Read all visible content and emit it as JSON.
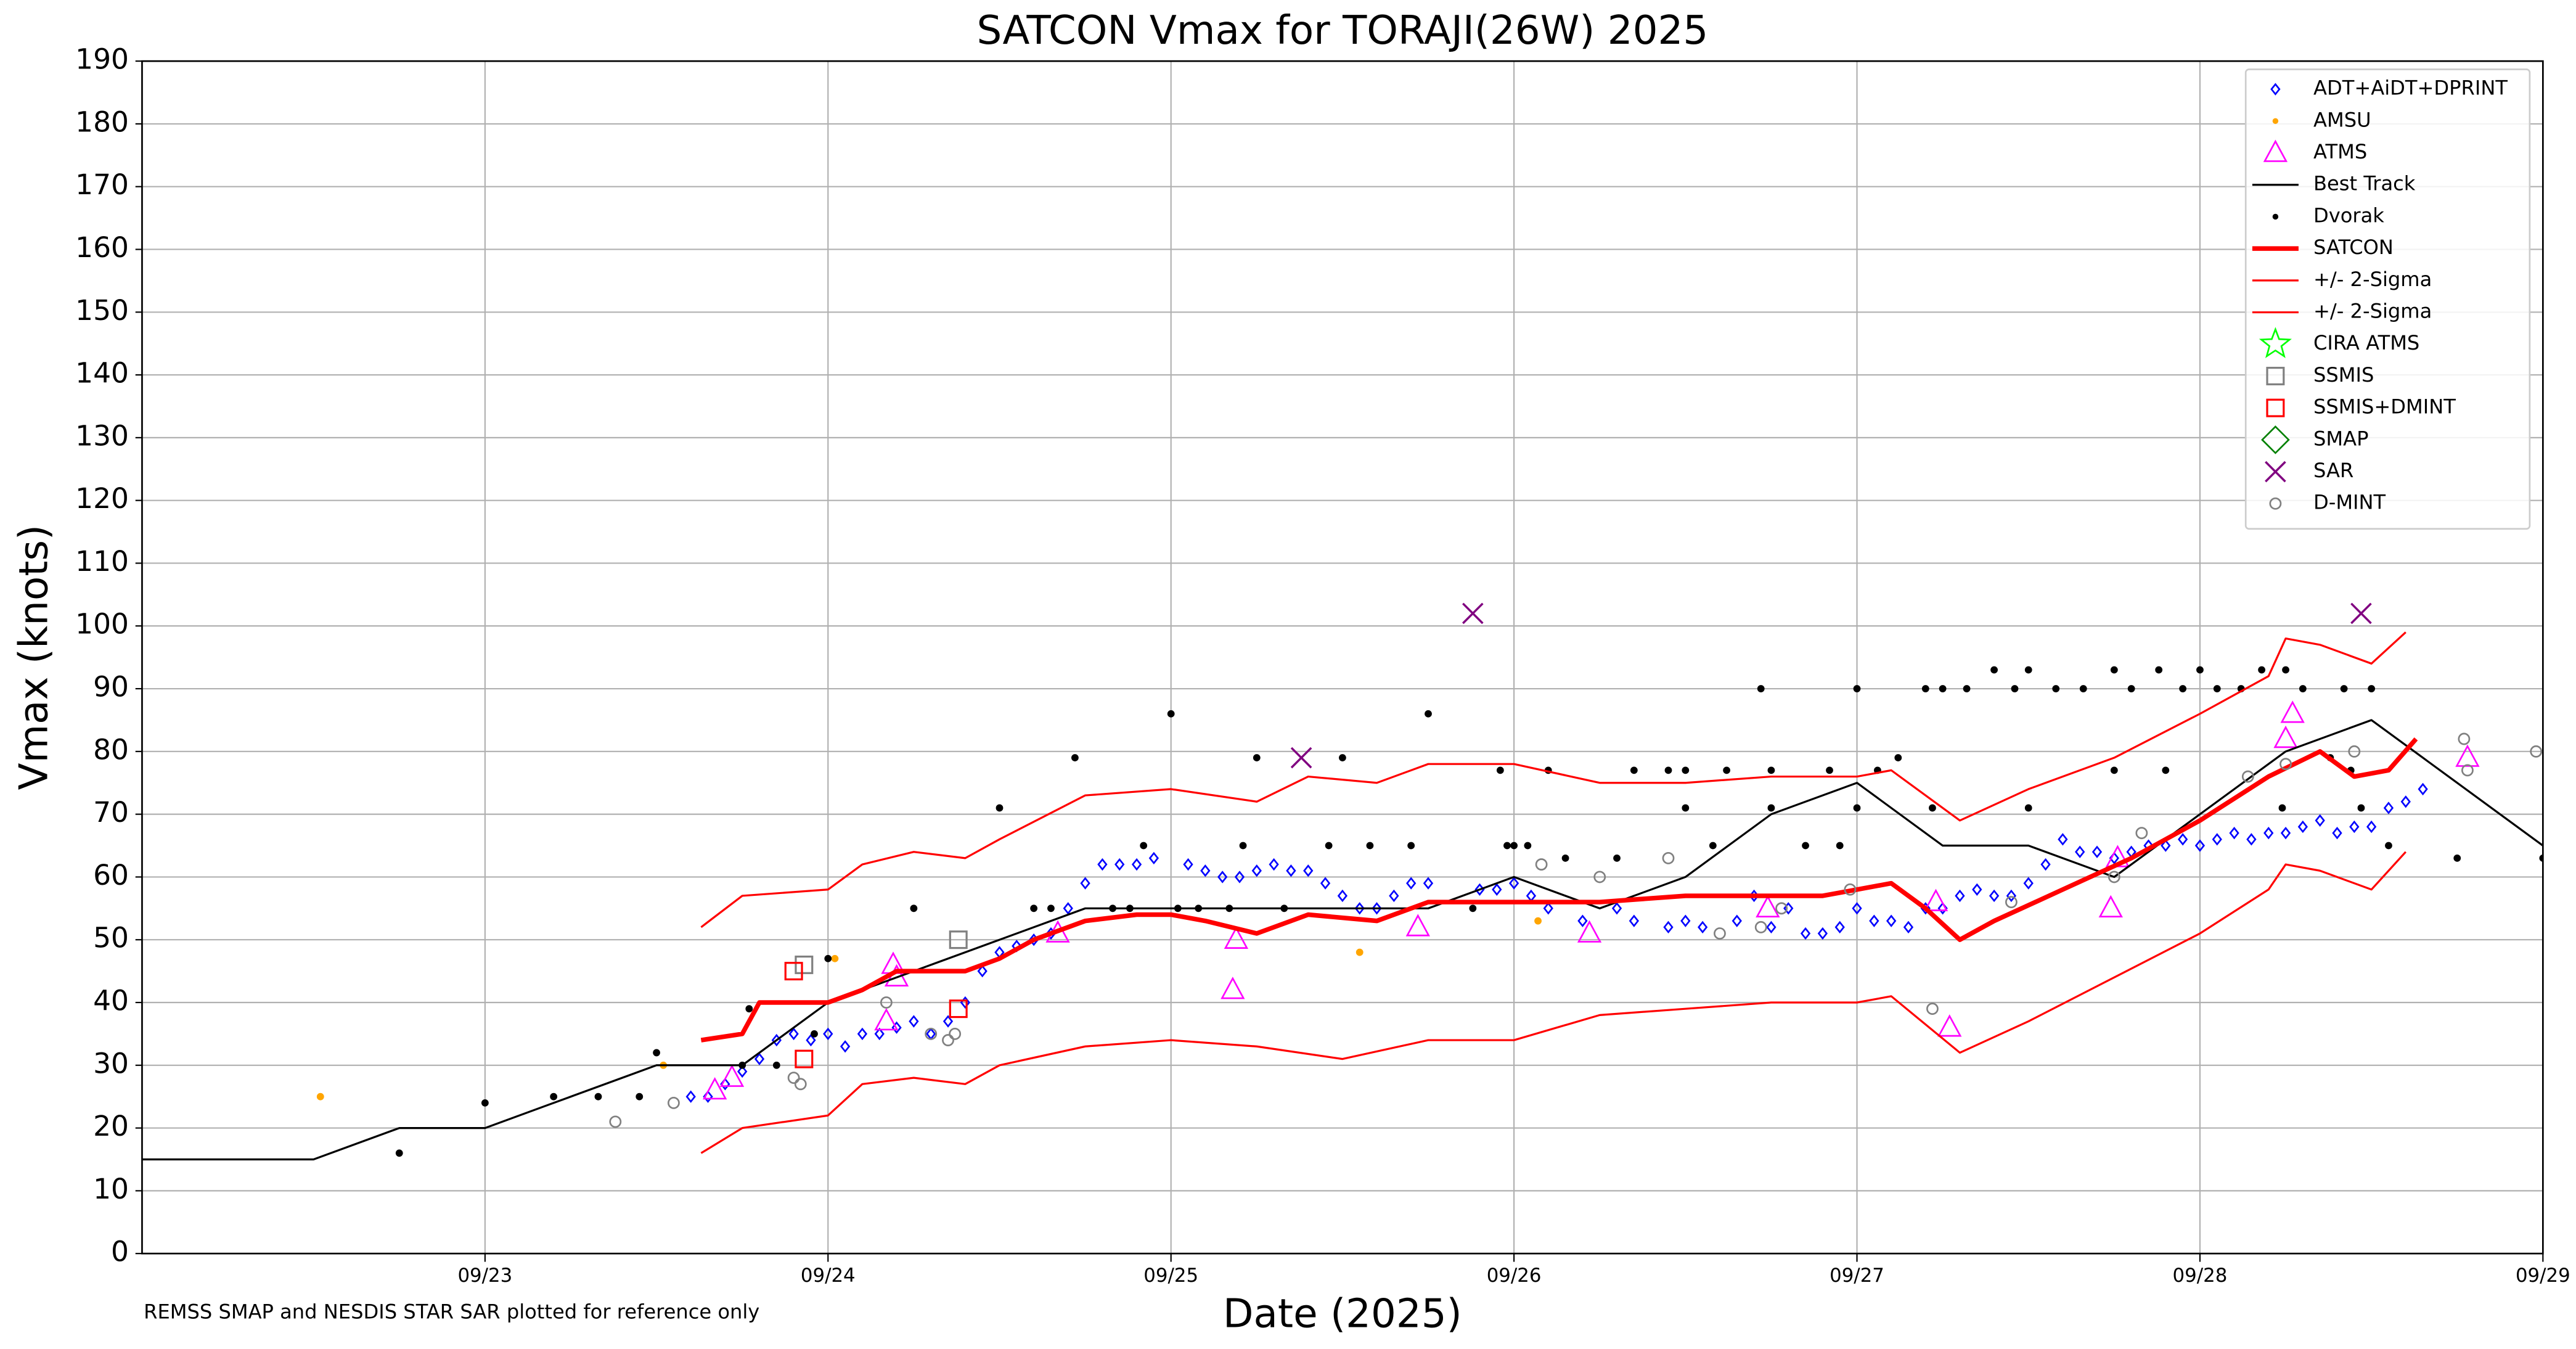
{
  "chart_data": {
    "type": "scatter",
    "title": "SATCON Vmax for TORAJI(26W) 2025",
    "x_label": "Date (2025)",
    "y_label": "Vmax (knots)",
    "note": "REMSS SMAP and NESDIS STAR SAR plotted for reference only",
    "xlim": [
      22,
      29
    ],
    "ylim": [
      0,
      190
    ],
    "xticks": [
      {
        "value": 23,
        "label": "09/23"
      },
      {
        "value": 24,
        "label": "09/24"
      },
      {
        "value": 25,
        "label": "09/25"
      },
      {
        "value": 26,
        "label": "09/26"
      },
      {
        "value": 27,
        "label": "09/27"
      },
      {
        "value": 28,
        "label": "09/28"
      },
      {
        "value": 29,
        "label": "09/29"
      }
    ],
    "yticks": [
      0,
      10,
      20,
      30,
      40,
      50,
      60,
      70,
      80,
      90,
      100,
      110,
      120,
      130,
      140,
      150,
      160,
      170,
      180,
      190
    ],
    "grid": true,
    "legend": "upper right",
    "series": [
      {
        "name": "ADT+AiDT+DPRINT",
        "color": "#0000ff",
        "marker": "diamond",
        "x": [
          23.6,
          23.65,
          23.7,
          23.75,
          23.8,
          23.85,
          23.9,
          23.95,
          24.0,
          24.05,
          24.1,
          24.15,
          24.2,
          24.25,
          24.3,
          24.35,
          24.4,
          24.45,
          24.5,
          24.55,
          24.6,
          24.65,
          24.7,
          24.75,
          24.8,
          24.85,
          24.9,
          24.95,
          25.05,
          25.1,
          25.15,
          25.2,
          25.25,
          25.3,
          25.35,
          25.4,
          25.45,
          25.5,
          25.55,
          25.6,
          25.65,
          25.7,
          25.75,
          25.9,
          25.95,
          26.0,
          26.05,
          26.1,
          26.2,
          26.3,
          26.35,
          26.45,
          26.5,
          26.55,
          26.65,
          26.7,
          26.75,
          26.8,
          26.85,
          26.9,
          26.95,
          27.0,
          27.05,
          27.1,
          27.15,
          27.2,
          27.25,
          27.3,
          27.35,
          27.4,
          27.45,
          27.5,
          27.55,
          27.6,
          27.65,
          27.7,
          27.75,
          27.8,
          27.85,
          27.9,
          27.95,
          28.0,
          28.05,
          28.1,
          28.15,
          28.2,
          28.25,
          28.3,
          28.35,
          28.4,
          28.45,
          28.5,
          28.55,
          28.6,
          28.65
        ],
        "values": [
          25,
          25,
          27,
          29,
          31,
          34,
          35,
          34,
          35,
          33,
          35,
          35,
          36,
          37,
          35,
          37,
          40,
          45,
          48,
          49,
          50,
          51,
          55,
          59,
          62,
          62,
          62,
          63,
          62,
          61,
          60,
          60,
          61,
          62,
          61,
          61,
          59,
          57,
          55,
          55,
          57,
          59,
          59,
          58,
          58,
          59,
          57,
          55,
          53,
          55,
          53,
          52,
          53,
          52,
          53,
          57,
          52,
          55,
          51,
          51,
          52,
          55,
          53,
          53,
          52,
          55,
          55,
          57,
          58,
          57,
          57,
          59,
          62,
          66,
          64,
          64,
          63,
          64,
          65,
          65,
          66,
          65,
          66,
          67,
          66,
          67,
          67,
          68,
          69,
          67,
          68,
          68,
          71,
          72,
          74
        ]
      },
      {
        "name": "AMSU",
        "color": "#ffa500",
        "marker": "dot",
        "x": [
          22.52,
          23.52,
          24.02,
          25.55,
          26.07
        ],
        "values": [
          25,
          30,
          47,
          48,
          53
        ]
      },
      {
        "name": "ATMS",
        "color": "#ff00ff",
        "marker": "triangle",
        "x": [
          23.67,
          23.72,
          24.17,
          24.19,
          24.2,
          24.67,
          25.18,
          25.19,
          25.72,
          26.22,
          26.74,
          27.23,
          27.27,
          27.74,
          27.76,
          28.25,
          28.27,
          28.78
        ],
        "values": [
          26,
          28,
          37,
          46,
          44,
          51,
          42,
          50,
          52,
          51,
          55,
          56,
          36,
          55,
          63,
          82,
          86,
          79
        ]
      },
      {
        "name": "Best Track",
        "color": "#000000",
        "marker": "line",
        "line_width": 1.2,
        "x": [
          22.0,
          22.25,
          22.5,
          22.75,
          23.0,
          23.25,
          23.5,
          23.75,
          24.0,
          24.25,
          24.5,
          24.75,
          25.0,
          25.25,
          25.5,
          25.75,
          26.0,
          26.25,
          26.5,
          26.75,
          27.0,
          27.25,
          27.5,
          27.75,
          28.0,
          28.25,
          28.5,
          28.75,
          29.0
        ],
        "values": [
          15,
          15,
          15,
          20,
          20,
          25,
          30,
          30,
          40,
          45,
          50,
          55,
          55,
          55,
          55,
          55,
          60,
          55,
          60,
          70,
          75,
          65,
          65,
          60,
          70,
          80,
          85,
          75,
          65
        ]
      },
      {
        "name": "Dvorak",
        "color": "#000000",
        "marker": "dot",
        "x": [
          22.75,
          23.0,
          23.2,
          23.33,
          23.45,
          23.5,
          23.75,
          23.77,
          23.85,
          23.96,
          24.0,
          24.25,
          24.5,
          24.6,
          24.65,
          24.72,
          24.83,
          24.88,
          24.92,
          25.0,
          25.02,
          25.08,
          25.17,
          25.21,
          25.25,
          25.33,
          25.46,
          25.5,
          25.58,
          25.7,
          25.75,
          25.88,
          25.96,
          25.98,
          26.0,
          26.04,
          26.1,
          26.15,
          26.3,
          26.35,
          26.45,
          26.5,
          26.58,
          26.62,
          26.72,
          26.75,
          26.85,
          26.92,
          26.95,
          27.0,
          27.06,
          27.12,
          27.2,
          27.25,
          27.32,
          27.4,
          27.46,
          27.5,
          27.58,
          27.66,
          27.75,
          27.8,
          27.88,
          27.95,
          28.0,
          28.05,
          28.12,
          28.18,
          28.25,
          28.3,
          28.38,
          28.42,
          28.5,
          28.55,
          28.75,
          29.0,
          28.24,
          27.75,
          27.9,
          28.47,
          28.44,
          27.22,
          27.5,
          26.5,
          26.75,
          27.0
        ],
        "values": [
          16,
          24,
          25,
          25,
          25,
          32,
          30,
          39,
          30,
          35,
          47,
          55,
          71,
          55,
          55,
          79,
          55,
          55,
          65,
          86,
          55,
          55,
          55,
          65,
          79,
          55,
          65,
          79,
          65,
          65,
          86,
          55,
          77,
          65,
          65,
          65,
          77,
          63,
          63,
          77,
          77,
          77,
          65,
          77,
          90,
          77,
          65,
          77,
          65,
          90,
          77,
          79,
          90,
          90,
          90,
          93,
          90,
          93,
          90,
          90,
          93,
          90,
          93,
          90,
          93,
          90,
          90,
          93,
          93,
          90,
          79,
          90,
          90,
          65,
          63,
          63,
          71,
          77,
          77,
          71,
          77,
          71,
          71,
          71,
          71,
          71
        ]
      },
      {
        "name": "SATCON",
        "color": "#ff0000",
        "marker": "line",
        "line_width": 2.8,
        "x": [
          23.63,
          23.75,
          23.8,
          24.0,
          24.1,
          24.2,
          24.3,
          24.4,
          24.5,
          24.6,
          24.75,
          24.9,
          25.0,
          25.1,
          25.25,
          25.4,
          25.6,
          25.75,
          26.0,
          26.25,
          26.5,
          26.75,
          26.9,
          27.0,
          27.1,
          27.2,
          27.3,
          27.4,
          27.6,
          27.8,
          28.0,
          28.2,
          28.35,
          28.45,
          28.55,
          28.63
        ],
        "values": [
          34,
          35,
          40,
          40,
          42,
          45,
          45,
          45,
          47,
          50,
          53,
          54,
          54,
          53,
          51,
          54,
          53,
          56,
          56,
          56,
          57,
          57,
          57,
          58,
          59,
          55,
          50,
          53,
          58,
          63,
          69,
          76,
          80,
          76,
          77,
          82
        ]
      },
      {
        "name": "+/- 2-Sigma",
        "color": "#ff0000",
        "marker": "line",
        "line_width": 1.2,
        "x": [
          23.63,
          23.75,
          24.0,
          24.1,
          24.25,
          24.4,
          24.5,
          24.75,
          25.0,
          25.25,
          25.4,
          25.6,
          25.75,
          26.0,
          26.25,
          26.5,
          26.75,
          27.0,
          27.1,
          27.3,
          27.5,
          27.75,
          28.0,
          28.2,
          28.25,
          28.35,
          28.5,
          28.6
        ],
        "values": [
          52,
          57,
          58,
          62,
          64,
          63,
          66,
          73,
          74,
          72,
          76,
          75,
          78,
          78,
          75,
          75,
          76,
          76,
          77,
          69,
          74,
          79,
          86,
          92,
          98,
          97,
          94,
          99
        ]
      },
      {
        "name": "+/- 2-Sigma",
        "color": "#ff0000",
        "marker": "line",
        "line_width": 1.2,
        "x": [
          23.63,
          23.75,
          24.0,
          24.1,
          24.25,
          24.4,
          24.5,
          24.75,
          25.0,
          25.25,
          25.5,
          25.75,
          26.0,
          26.25,
          26.5,
          26.75,
          27.0,
          27.1,
          27.3,
          27.5,
          27.75,
          28.0,
          28.2,
          28.25,
          28.35,
          28.5,
          28.6
        ],
        "values": [
          16,
          20,
          22,
          27,
          28,
          27,
          30,
          33,
          34,
          33,
          31,
          34,
          34,
          38,
          39,
          40,
          40,
          41,
          32,
          37,
          44,
          51,
          58,
          62,
          61,
          58,
          64
        ]
      },
      {
        "name": "CIRA ATMS",
        "color": "#00ff00",
        "marker": "star",
        "x": [],
        "values": []
      },
      {
        "name": "SSMIS",
        "color": "#808080",
        "marker": "square",
        "x": [
          23.93,
          24.38
        ],
        "values": [
          46,
          50
        ]
      },
      {
        "name": "SSMIS+DMINT",
        "color": "#ff0000",
        "marker": "square",
        "x": [
          23.9,
          23.93,
          24.38
        ],
        "values": [
          45,
          31,
          39
        ]
      },
      {
        "name": "SMAP",
        "color": "#008000",
        "marker": "bigdiamond",
        "x": [],
        "values": []
      },
      {
        "name": "SAR",
        "color": "#800080",
        "marker": "x",
        "x": [
          25.38,
          25.88,
          28.47
        ],
        "values": [
          79,
          102,
          102
        ]
      },
      {
        "name": "D-MINT",
        "color": "#808080",
        "marker": "circle",
        "x": [
          23.38,
          23.55,
          23.9,
          23.92,
          24.17,
          24.3,
          24.35,
          24.37,
          26.08,
          26.25,
          26.45,
          26.6,
          26.72,
          26.78,
          26.98,
          27.22,
          27.45,
          27.75,
          27.83,
          28.14,
          28.25,
          28.45,
          28.77,
          28.78,
          28.98
        ],
        "values": [
          21,
          24,
          28,
          27,
          40,
          35,
          34,
          35,
          62,
          60,
          63,
          51,
          52,
          55,
          58,
          39,
          56,
          60,
          67,
          76,
          78,
          80,
          82,
          77,
          80
        ]
      }
    ]
  }
}
